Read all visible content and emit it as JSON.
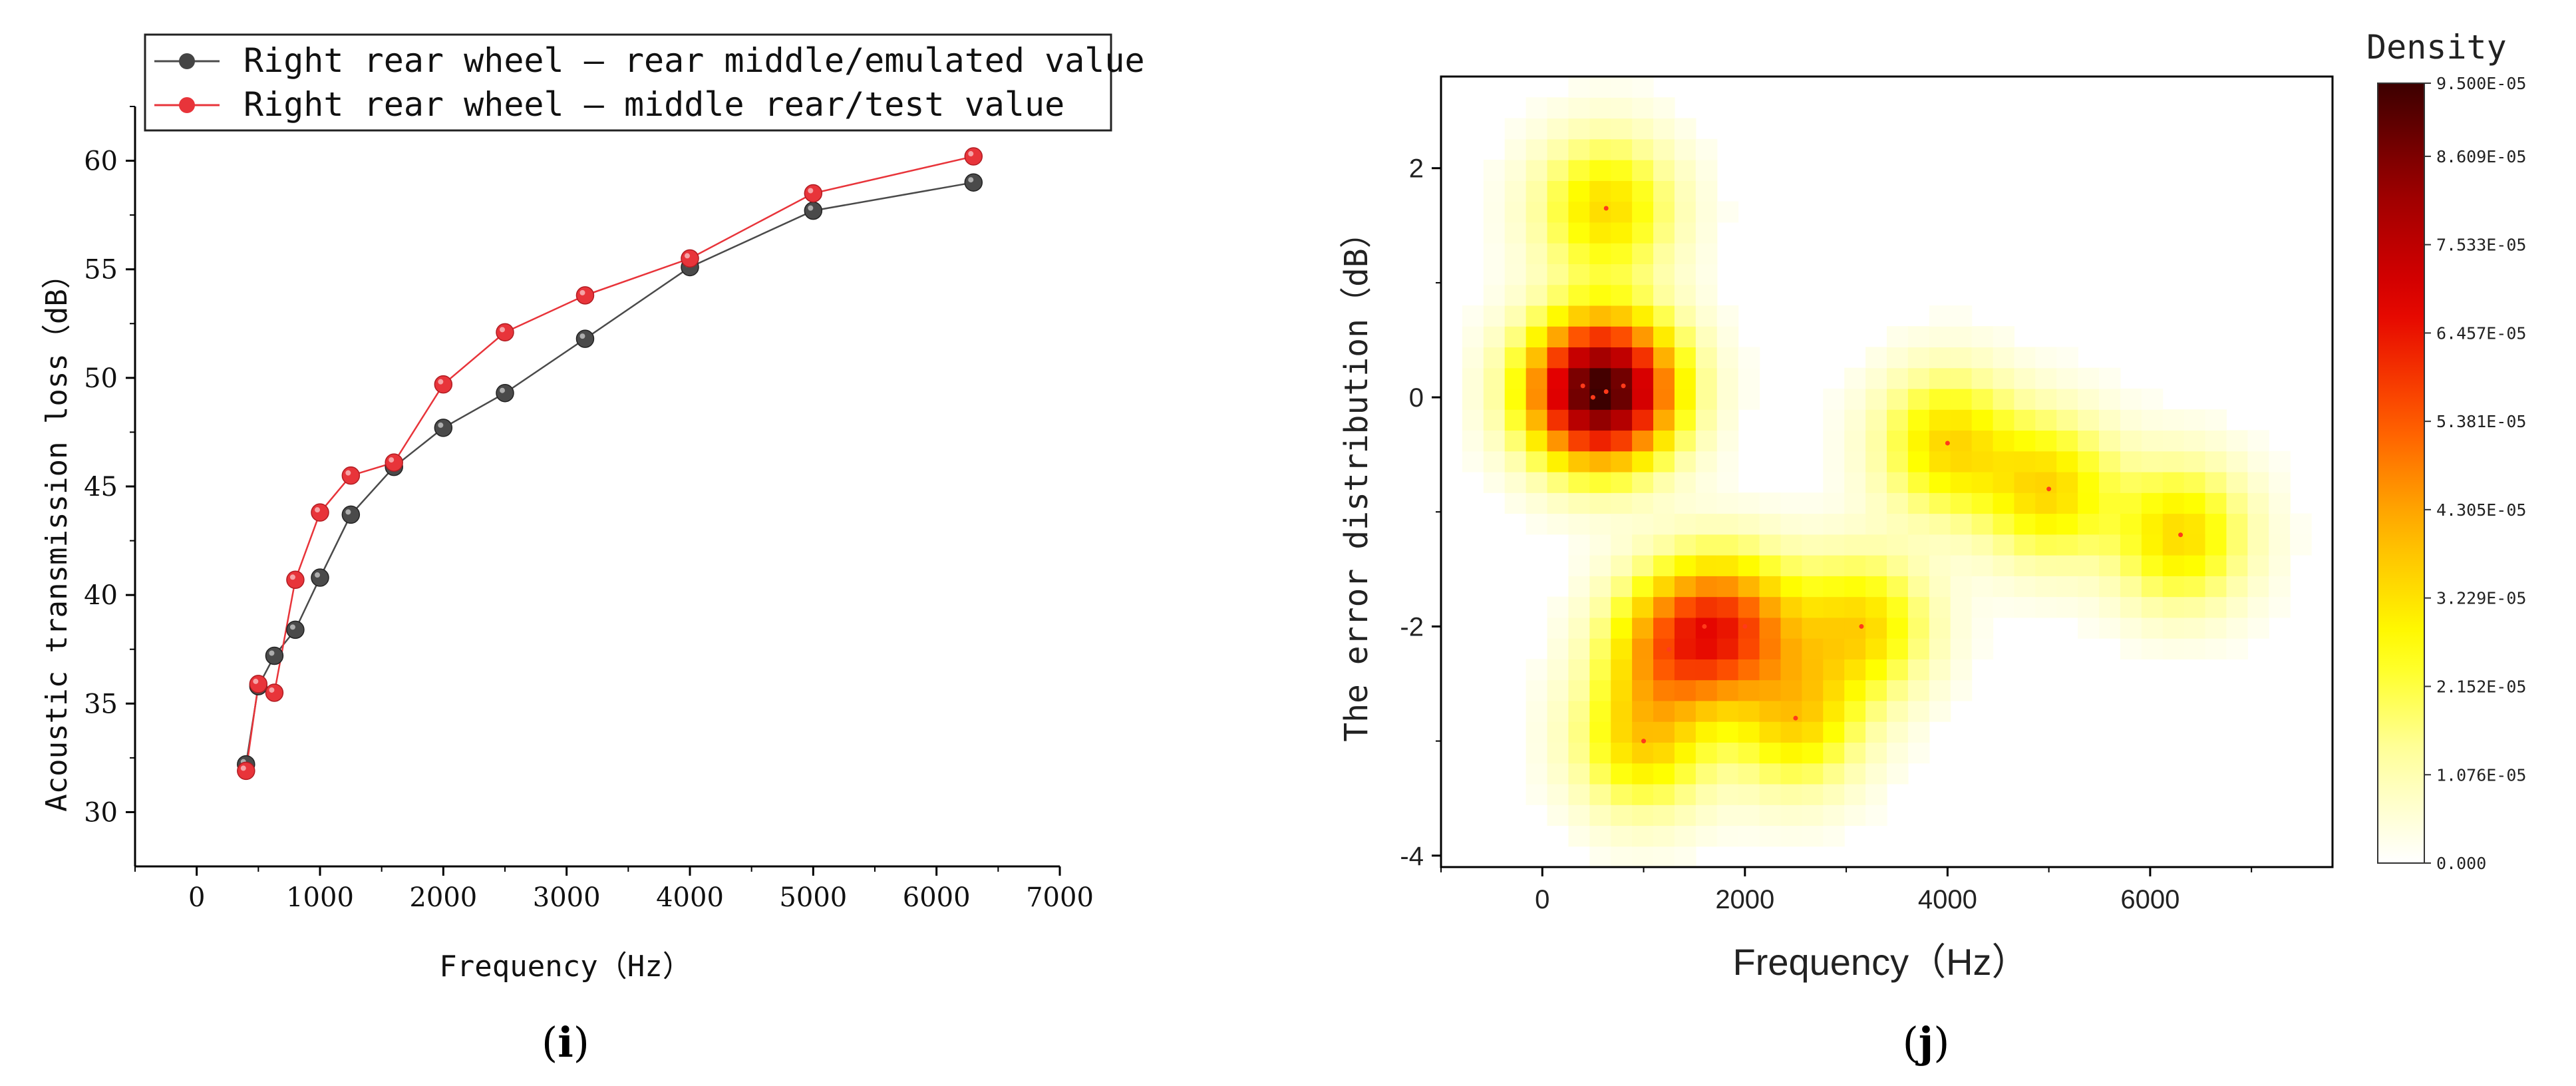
{
  "chart_data": [
    {
      "panel_label": "i",
      "type": "line",
      "xlabel": "Frequency（Hz）",
      "ylabel": "Acoustic transmission loss（dB）",
      "xlim": [
        -500,
        7000
      ],
      "ylim": [
        27.5,
        62.5
      ],
      "xticks": [
        0,
        1000,
        2000,
        3000,
        4000,
        5000,
        6000,
        7000
      ],
      "xtick_labels": [
        "0",
        "1000",
        "2000",
        "3000",
        "4000",
        "5000",
        "6000",
        "7000"
      ],
      "yticks": [
        30,
        35,
        40,
        45,
        50,
        55,
        60
      ],
      "ytick_labels": [
        "30",
        "35",
        "40",
        "45",
        "50",
        "55",
        "60"
      ],
      "legend_position": "top",
      "series": [
        {
          "name": "Right rear wheel – rear middle/emulated value",
          "color": "#4a4a4a",
          "x": [
            400,
            500,
            630,
            800,
            1000,
            1250,
            1600,
            2000,
            2500,
            3150,
            4000,
            5000,
            6300
          ],
          "y": [
            32.2,
            35.8,
            37.2,
            38.4,
            40.8,
            43.7,
            45.9,
            47.7,
            49.3,
            51.8,
            55.1,
            57.7,
            59.0
          ]
        },
        {
          "name": "Right rear wheel – middle rear/test value",
          "color": "#e8343a",
          "x": [
            400,
            500,
            630,
            800,
            1000,
            1250,
            1600,
            2000,
            2500,
            3150,
            4000,
            5000,
            6300
          ],
          "y": [
            31.9,
            35.9,
            35.5,
            40.7,
            43.8,
            45.5,
            46.1,
            49.7,
            52.1,
            53.8,
            55.5,
            58.5,
            60.2
          ]
        }
      ]
    },
    {
      "panel_label": "j",
      "type": "heatmap",
      "xlabel": "Frequency（Hz）",
      "ylabel": "The error distribution（dB）",
      "xlim": [
        -1000,
        7800
      ],
      "ylim": [
        -4.1,
        2.8
      ],
      "xticks": [
        0,
        2000,
        4000,
        6000
      ],
      "xtick_labels": [
        "0",
        "2000",
        "4000",
        "6000"
      ],
      "yticks": [
        -4,
        -2,
        0,
        2
      ],
      "ytick_labels": [
        "-4",
        "-2",
        "0",
        "2"
      ],
      "colorbar_title": "Density",
      "colorbar_ticks": [
        "0.000",
        "1.076E-05",
        "2.152E-05",
        "3.229E-05",
        "4.305E-05",
        "5.381E-05",
        "6.457E-05",
        "7.533E-05",
        "8.609E-05",
        "9.500E-05"
      ],
      "colorbar_tick_values": [
        0,
        1.076e-05,
        2.152e-05,
        3.229e-05,
        4.305e-05,
        5.381e-05,
        6.457e-05,
        7.533e-05,
        8.609e-05,
        9.5e-05
      ],
      "vmax": 9.5e-05,
      "colormap": [
        "#ffffff",
        "#ffff9e",
        "#ffff00",
        "#ffb400",
        "#ff5500",
        "#e30000",
        "#9e0000",
        "#3c0000"
      ],
      "points": [
        {
          "x": 630,
          "y": 1.65
        },
        {
          "x": 400,
          "y": 0.1
        },
        {
          "x": 500,
          "y": 0.0
        },
        {
          "x": 630,
          "y": 0.05
        },
        {
          "x": 800,
          "y": 0.1
        },
        {
          "x": 1000,
          "y": -3.0
        },
        {
          "x": 1250,
          "y": -2.2
        },
        {
          "x": 1600,
          "y": -2.0
        },
        {
          "x": 2000,
          "y": -2.0
        },
        {
          "x": 2500,
          "y": -2.8
        },
        {
          "x": 3150,
          "y": -2.0
        },
        {
          "x": 4000,
          "y": -0.4
        },
        {
          "x": 5000,
          "y": -0.8
        },
        {
          "x": 6300,
          "y": -1.2
        }
      ]
    }
  ]
}
